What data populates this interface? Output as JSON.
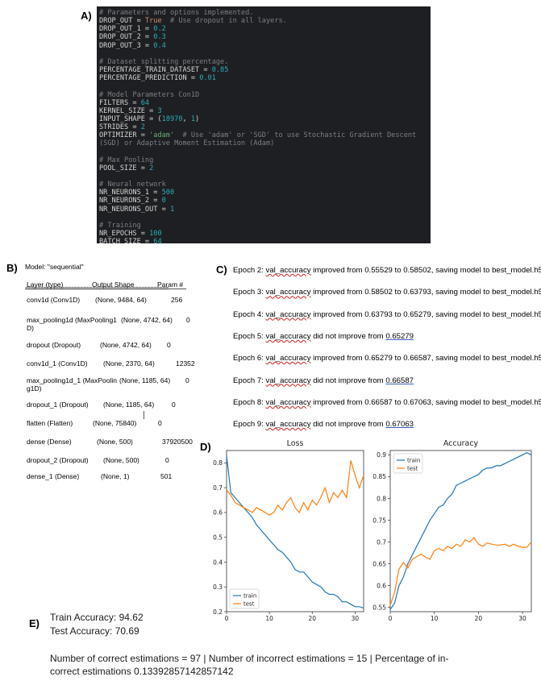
{
  "labels": {
    "a": "A)",
    "b": "B)",
    "c": "C)",
    "d": "D)",
    "e": "E)"
  },
  "code_lines": [
    [
      {
        "t": "# Parameters and options implemented.",
        "c": "com"
      }
    ],
    [
      {
        "t": "DROP_OUT = ",
        "c": "txt"
      },
      {
        "t": "True",
        "c": "kw"
      },
      {
        "t": "  # Use dropout in all layers.",
        "c": "com"
      }
    ],
    [
      {
        "t": "DROP_OUT_1 = ",
        "c": "txt"
      },
      {
        "t": "0.2",
        "c": "num"
      }
    ],
    [
      {
        "t": "DROP_OUT_2 = ",
        "c": "txt"
      },
      {
        "t": "0.3",
        "c": "num"
      }
    ],
    [
      {
        "t": "DROP_OUT_3 = ",
        "c": "txt"
      },
      {
        "t": "0.4",
        "c": "num"
      }
    ],
    [],
    [
      {
        "t": "# Dataset splitting percentage.",
        "c": "com"
      }
    ],
    [
      {
        "t": "PERCENTAGE_TRAIN_DATASET = ",
        "c": "txt"
      },
      {
        "t": "0.85",
        "c": "num"
      }
    ],
    [
      {
        "t": "PERCENTAGE_PREDICTION = ",
        "c": "txt"
      },
      {
        "t": "0.01",
        "c": "num"
      }
    ],
    [],
    [
      {
        "t": "# Model Parameters Con1D",
        "c": "com"
      }
    ],
    [
      {
        "t": "FILTERS = ",
        "c": "txt"
      },
      {
        "t": "64",
        "c": "num"
      }
    ],
    [
      {
        "t": "KERNEL_SIZE = ",
        "c": "txt"
      },
      {
        "t": "3",
        "c": "num"
      }
    ],
    [
      {
        "t": "INPUT_SHAPE = (",
        "c": "txt"
      },
      {
        "t": "18970",
        "c": "num"
      },
      {
        "t": ", ",
        "c": "txt"
      },
      {
        "t": "1",
        "c": "num"
      },
      {
        "t": ")",
        "c": "txt"
      }
    ],
    [
      {
        "t": "STRIDES = ",
        "c": "txt"
      },
      {
        "t": "2",
        "c": "num"
      }
    ],
    [
      {
        "t": "OPTIMIZER = ",
        "c": "txt"
      },
      {
        "t": "'adam'",
        "c": "str"
      },
      {
        "t": "  # Use 'adam' or 'SGD' to use Stochastic Gradient Descent",
        "c": "com"
      }
    ],
    [
      {
        "t": "(SGD) or Adaptive Moment Estimation (Adam)",
        "c": "com"
      }
    ],
    [],
    [
      {
        "t": "# Max Pooling",
        "c": "com"
      }
    ],
    [
      {
        "t": "POOL_SIZE = ",
        "c": "txt"
      },
      {
        "t": "2",
        "c": "num"
      }
    ],
    [],
    [
      {
        "t": "# Neural network",
        "c": "com"
      }
    ],
    [
      {
        "t": "NR_NEURONS_1 = ",
        "c": "txt"
      },
      {
        "t": "500",
        "c": "num"
      }
    ],
    [
      {
        "t": "NR_NEURONS_2 = ",
        "c": "txt"
      },
      {
        "t": "0",
        "c": "num"
      }
    ],
    [
      {
        "t": "NR_NEURONS_OUT = ",
        "c": "txt"
      },
      {
        "t": "1",
        "c": "num"
      }
    ],
    [],
    [
      {
        "t": "# Training",
        "c": "com"
      }
    ],
    [
      {
        "t": "NR_EPOCHS = ",
        "c": "txt"
      },
      {
        "t": "100",
        "c": "num"
      }
    ],
    [
      {
        "t": "BATCH_SIZE = ",
        "c": "txt"
      },
      {
        "t": "64",
        "c": "num"
      }
    ]
  ],
  "summary": {
    "model": "Model: \"sequential\"",
    "col_layer": "Layer (type)",
    "col_output": "Output Shape",
    "col_param": "Param #",
    "separator": "===============================================",
    "rows": [
      {
        "l1": "conv1d (Conv1D)",
        "l2": "",
        "shape": "(None, 9484, 64)",
        "param": "256"
      },
      {
        "l1": "max_pooling1d (MaxPooling1",
        "l2": "D)",
        "shape": "(None, 4742, 64)",
        "param": "0"
      },
      {
        "l1": "dropout (Dropout)",
        "l2": "",
        "shape": "(None, 4742, 64)",
        "param": "0"
      },
      {
        "l1": "conv1d_1 (Conv1D)",
        "l2": "",
        "shape": "(None, 2370, 64)",
        "param": "12352"
      },
      {
        "l1": "max_pooling1d_1 (MaxPoolin",
        "l2": "g1D)",
        "shape": "(None, 1185, 64)",
        "param": "0"
      },
      {
        "l1": "dropout_1 (Dropout)",
        "l2": "",
        "shape": "(None, 1185, 64)",
        "param": "0"
      },
      {
        "l1": "flatten (Flatten)",
        "l2": "",
        "shape": "(None, 75840)",
        "param": "0"
      },
      {
        "l1": "dense (Dense)",
        "l2": "",
        "shape": "(None, 500)",
        "param": "37920500"
      },
      {
        "l1": "dropout_2 (Dropout)",
        "l2": "",
        "shape": "(None, 500)",
        "param": "0"
      },
      {
        "l1": "dense_1 (Dense)",
        "l2": "",
        "shape": "(None, 1)",
        "param": "501"
      }
    ]
  },
  "log": [
    {
      "pre": "Epoch 2: ",
      "kw": "val_accuracy",
      "post": " improved from 0.55529 to 0.58502, saving model to best_model.h5",
      "tail": ""
    },
    {
      "pre": "Epoch 3: ",
      "kw": "val_accuracy",
      "post": " improved from 0.58502 to 0.63793, saving model to best_model.h5",
      "tail": ""
    },
    {
      "pre": "Epoch 4: ",
      "kw": "val_accuracy",
      "post": " improved from 0.63793 to 0.65279, saving model to best_model.h5",
      "tail": ""
    },
    {
      "pre": "Epoch 5: ",
      "kw": "val_accuracy",
      "post": " did not improve from ",
      "tail": "0.65279"
    },
    {
      "pre": "Epoch 6: ",
      "kw": "val_accuracy",
      "post": " improved from 0.65279 to 0.66587, saving model to best_model.h5",
      "tail": ""
    },
    {
      "pre": "Epoch 7: ",
      "kw": "val_accuracy",
      "post": " did not improve from ",
      "tail": "0.66587"
    },
    {
      "pre": "Epoch 8: ",
      "kw": "val_accuracy",
      "post": " improved from 0.66587 to 0.67063, saving model to best_model.h5",
      "tail": ""
    },
    {
      "pre": "Epoch 9: ",
      "kw": "val_accuracy",
      "post": " did not improve from ",
      "tail": "0.67063"
    }
  ],
  "chart_data": [
    {
      "type": "line",
      "title": "Loss",
      "xlim": [
        0,
        32
      ],
      "ylim": [
        0.2,
        0.85
      ],
      "xticks": [
        0,
        10,
        20,
        30
      ],
      "yticks": [
        0.2,
        0.3,
        0.4,
        0.5,
        0.6,
        0.7,
        0.8
      ],
      "legend": "lower-left",
      "series": [
        {
          "name": "train",
          "color": "#1f77b4",
          "x": [
            0,
            1,
            2,
            3,
            4,
            5,
            6,
            7,
            8,
            9,
            10,
            11,
            12,
            13,
            14,
            15,
            16,
            17,
            18,
            19,
            20,
            21,
            22,
            23,
            24,
            25,
            26,
            27,
            28,
            29,
            30,
            31,
            32
          ],
          "values": [
            0.83,
            0.68,
            0.66,
            0.64,
            0.62,
            0.6,
            0.58,
            0.55,
            0.53,
            0.51,
            0.49,
            0.47,
            0.45,
            0.44,
            0.42,
            0.4,
            0.37,
            0.36,
            0.36,
            0.34,
            0.32,
            0.31,
            0.3,
            0.28,
            0.27,
            0.27,
            0.26,
            0.24,
            0.24,
            0.23,
            0.22,
            0.22,
            0.215
          ]
        },
        {
          "name": "test",
          "color": "#ff7f0e",
          "x": [
            0,
            1,
            2,
            3,
            4,
            5,
            6,
            7,
            8,
            9,
            10,
            11,
            12,
            13,
            14,
            15,
            16,
            17,
            18,
            19,
            20,
            21,
            22,
            23,
            24,
            25,
            26,
            27,
            28,
            29,
            30,
            31,
            32
          ],
          "values": [
            0.69,
            0.67,
            0.64,
            0.63,
            0.62,
            0.61,
            0.6,
            0.62,
            0.61,
            0.6,
            0.59,
            0.6,
            0.63,
            0.61,
            0.64,
            0.66,
            0.62,
            0.6,
            0.64,
            0.61,
            0.65,
            0.63,
            0.66,
            0.7,
            0.64,
            0.68,
            0.66,
            0.69,
            0.66,
            0.81,
            0.75,
            0.7,
            0.75
          ]
        }
      ]
    },
    {
      "type": "line",
      "title": "Accuracy",
      "xlim": [
        0,
        32
      ],
      "ylim": [
        0.54,
        0.91
      ],
      "xticks": [
        0,
        10,
        20,
        30
      ],
      "yticks": [
        0.55,
        0.6,
        0.65,
        0.7,
        0.75,
        0.8,
        0.85,
        0.9
      ],
      "legend": "upper-left",
      "series": [
        {
          "name": "train",
          "color": "#1f77b4",
          "x": [
            0,
            1,
            2,
            3,
            4,
            5,
            6,
            7,
            8,
            9,
            10,
            11,
            12,
            13,
            14,
            15,
            16,
            17,
            18,
            19,
            20,
            21,
            22,
            23,
            24,
            25,
            26,
            27,
            28,
            29,
            30,
            31,
            32
          ],
          "values": [
            0.545,
            0.56,
            0.6,
            0.62,
            0.65,
            0.67,
            0.69,
            0.71,
            0.73,
            0.75,
            0.765,
            0.78,
            0.785,
            0.8,
            0.81,
            0.83,
            0.835,
            0.84,
            0.845,
            0.85,
            0.855,
            0.865,
            0.87,
            0.87,
            0.875,
            0.875,
            0.88,
            0.885,
            0.89,
            0.895,
            0.9,
            0.905,
            0.9
          ]
        },
        {
          "name": "test",
          "color": "#ff7f0e",
          "x": [
            0,
            1,
            2,
            3,
            4,
            5,
            6,
            7,
            8,
            9,
            10,
            11,
            12,
            13,
            14,
            15,
            16,
            17,
            18,
            19,
            20,
            21,
            22,
            23,
            24,
            25,
            26,
            27,
            28,
            29,
            30,
            31,
            32
          ],
          "values": [
            0.555,
            0.585,
            0.638,
            0.653,
            0.64,
            0.66,
            0.666,
            0.672,
            0.665,
            0.66,
            0.68,
            0.685,
            0.68,
            0.69,
            0.685,
            0.695,
            0.69,
            0.705,
            0.7,
            0.71,
            0.695,
            0.69,
            0.698,
            0.695,
            0.693,
            0.693,
            0.695,
            0.69,
            0.695,
            0.69,
            0.688,
            0.688,
            0.7
          ]
        }
      ]
    }
  ],
  "results": {
    "train": "Train Accuracy: 94.62",
    "test": "Test Accuracy: 70.69",
    "summary_line1": "Number of correct estimations = 97 | Number of incorrect estimations = 15 | Percentage of in-",
    "summary_line2": "correct estimations 0.13392857142857142"
  }
}
